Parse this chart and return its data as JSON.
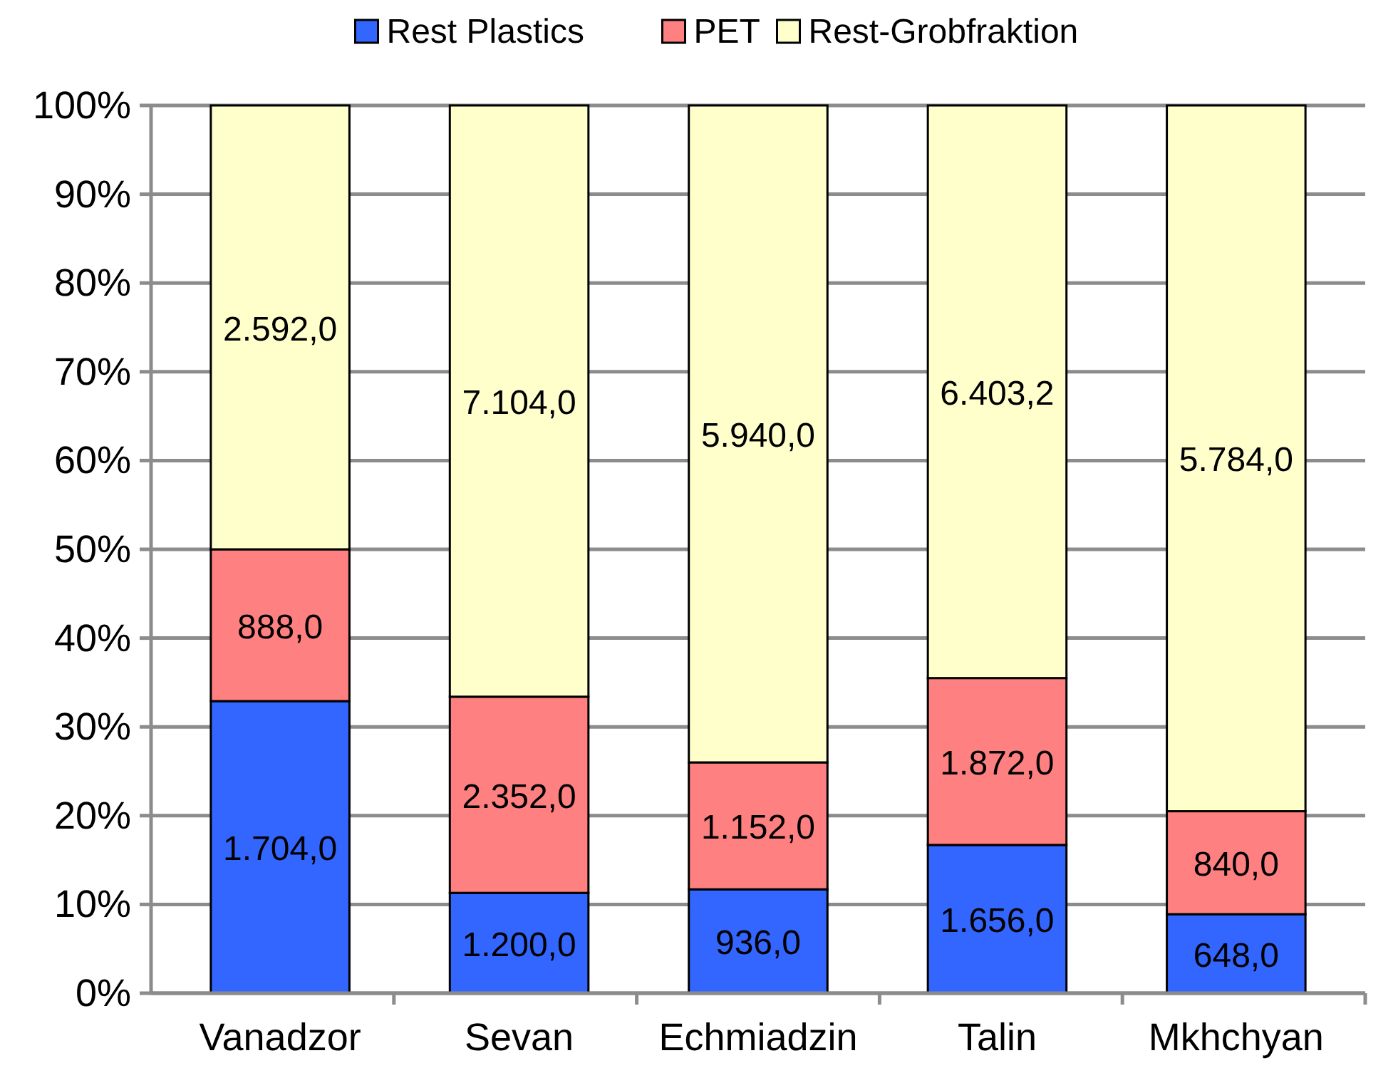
{
  "chart_data": {
    "type": "bar",
    "stacked": true,
    "categories": [
      "Vanadzor",
      "Sevan",
      "Echmiadzin",
      "Talin",
      "Mkhchyan"
    ],
    "series": [
      {
        "name": "Rest Plastics",
        "color": "#3366ff",
        "values": [
          32.9,
          11.3,
          11.7,
          16.7,
          8.9
        ]
      },
      {
        "name": "PET",
        "color": "#ff8080",
        "values": [
          17.1,
          22.1,
          14.3,
          18.8,
          11.6
        ]
      },
      {
        "name": "Rest-Grobfraktion",
        "color": "#ffffcc",
        "values": [
          50.0,
          66.6,
          74.0,
          64.5,
          79.5
        ]
      }
    ],
    "annotations": [
      "1.704,0",
      "1.200,0",
      "936,0",
      "1.656,0",
      "648,0",
      "888,0",
      "2.352,0",
      "1.152,0",
      "1.872,0",
      "840,0",
      "2.592,0",
      "7.104,0",
      "5.940,0",
      "6.403,2",
      "5.784,0"
    ],
    "ylim": [
      0,
      100
    ],
    "yticks": [
      {
        "value": 0,
        "label": "0%"
      },
      {
        "value": 10,
        "label": "10%"
      },
      {
        "value": 20,
        "label": "20%"
      },
      {
        "value": 30,
        "label": "30%"
      },
      {
        "value": 40,
        "label": "40%"
      },
      {
        "value": 50,
        "label": "50%"
      },
      {
        "value": 60,
        "label": "60%"
      },
      {
        "value": 70,
        "label": "70%"
      },
      {
        "value": 80,
        "label": "80%"
      },
      {
        "value": 90,
        "label": "90%"
      },
      {
        "value": 100,
        "label": "100%"
      }
    ],
    "grid": "y",
    "legend": "top"
  }
}
